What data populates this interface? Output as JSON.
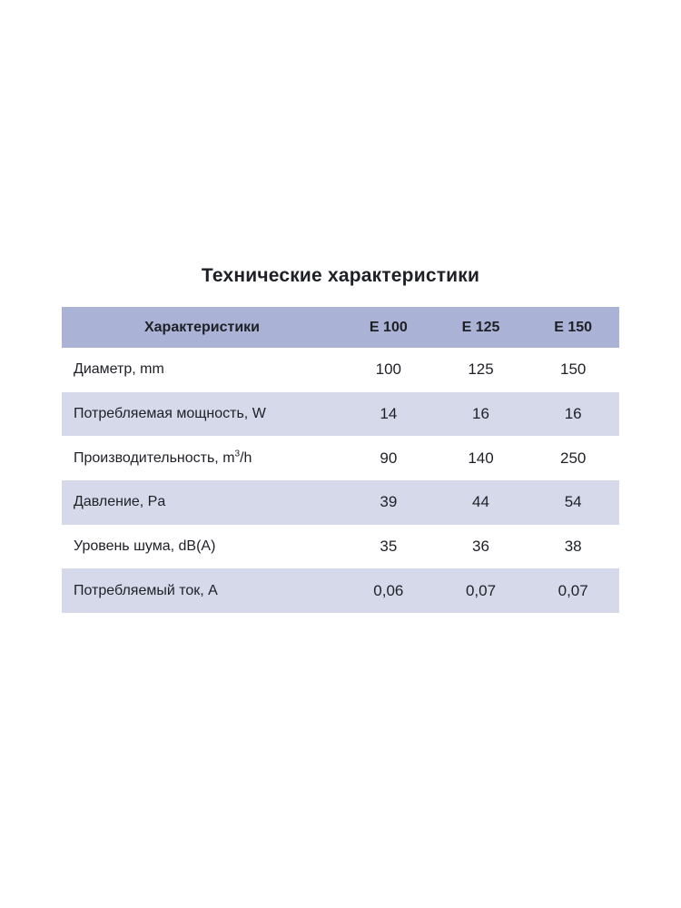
{
  "title": "Технические характеристики",
  "table": {
    "header": {
      "label": "Характеристики",
      "columns": [
        "E 100",
        "E 125",
        "E 150"
      ]
    },
    "rows": [
      {
        "label": "Диаметр, mm",
        "sup": "",
        "tail": "",
        "values": [
          "100",
          "125",
          "150"
        ]
      },
      {
        "label": "Потребляемая мощность, W",
        "sup": "",
        "tail": "",
        "values": [
          "14",
          "16",
          "16"
        ]
      },
      {
        "label": "Производительность, m",
        "sup": "3",
        "tail": "/h",
        "values": [
          "90",
          "140",
          "250"
        ]
      },
      {
        "label": "Давление, Pa",
        "sup": "",
        "tail": "",
        "values": [
          "39",
          "44",
          "54"
        ]
      },
      {
        "label": "Уровень шума, dB(A)",
        "sup": "",
        "tail": "",
        "values": [
          "35",
          "36",
          "38"
        ]
      },
      {
        "label": "Потребляемый ток, A",
        "sup": "",
        "tail": "",
        "values": [
          "0,06",
          "0,07",
          "0,07"
        ]
      }
    ]
  },
  "colors": {
    "header_bg": "#aab2d5",
    "row_alt_bg": "#d6d9ea",
    "row_bg": "#ffffff",
    "text": "#1e2026",
    "page_bg": "#ffffff"
  }
}
